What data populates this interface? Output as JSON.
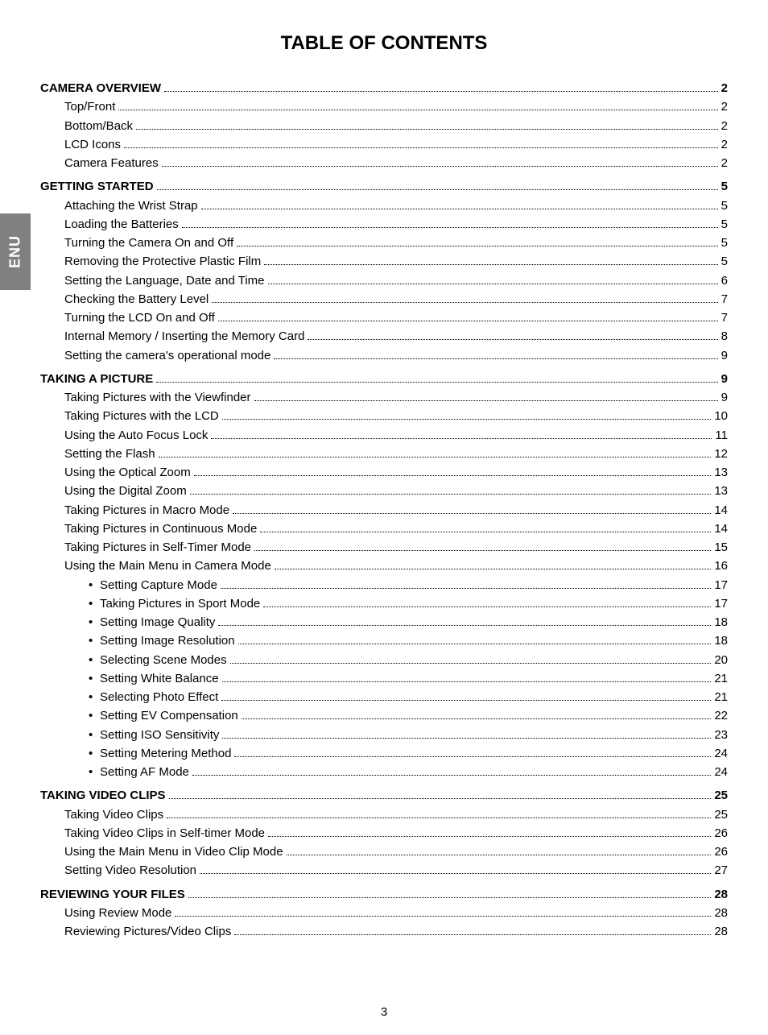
{
  "title": "TABLE OF CONTENTS",
  "side_tab": "ENU",
  "page_number": "3",
  "colors": {
    "background": "#ffffff",
    "text": "#000000",
    "tab_bg": "#808080",
    "tab_text": "#ffffff",
    "leader": "#000000"
  },
  "fonts": {
    "title_size_pt": 18,
    "body_size_pt": 11,
    "family": "Arial"
  },
  "toc": [
    {
      "label": "CAMERA OVERVIEW",
      "page": "2",
      "indent": 0,
      "bold": true,
      "bullet": false
    },
    {
      "label": "Top/Front",
      "page": "2",
      "indent": 1,
      "bold": false,
      "bullet": false
    },
    {
      "label": "Bottom/Back",
      "page": "2",
      "indent": 1,
      "bold": false,
      "bullet": false
    },
    {
      "label": "LCD Icons",
      "page": "2",
      "indent": 1,
      "bold": false,
      "bullet": false
    },
    {
      "label": "Camera Features",
      "page": "2",
      "indent": 1,
      "bold": false,
      "bullet": false
    },
    {
      "label": "GETTING STARTED",
      "page": "5",
      "indent": 0,
      "bold": true,
      "bullet": false
    },
    {
      "label": "Attaching the Wrist Strap",
      "page": "5",
      "indent": 1,
      "bold": false,
      "bullet": false
    },
    {
      "label": "Loading the Batteries",
      "page": "5",
      "indent": 1,
      "bold": false,
      "bullet": false
    },
    {
      "label": "Turning the Camera On and Off",
      "page": "5",
      "indent": 1,
      "bold": false,
      "bullet": false
    },
    {
      "label": "Removing the Protective Plastic Film",
      "page": "5",
      "indent": 1,
      "bold": false,
      "bullet": false
    },
    {
      "label": "Setting the Language, Date and Time",
      "page": "6",
      "indent": 1,
      "bold": false,
      "bullet": false
    },
    {
      "label": "Checking the Battery Level",
      "page": "7",
      "indent": 1,
      "bold": false,
      "bullet": false
    },
    {
      "label": "Turning the LCD On and Off",
      "page": "7",
      "indent": 1,
      "bold": false,
      "bullet": false
    },
    {
      "label": "Internal Memory / Inserting the Memory Card",
      "page": "8",
      "indent": 1,
      "bold": false,
      "bullet": false
    },
    {
      "label": "Setting the camera's operational mode",
      "page": "9",
      "indent": 1,
      "bold": false,
      "bullet": false
    },
    {
      "label": "TAKING A PICTURE",
      "page": "9",
      "indent": 0,
      "bold": true,
      "bullet": false
    },
    {
      "label": "Taking Pictures with the Viewfinder",
      "page": "9",
      "indent": 1,
      "bold": false,
      "bullet": false
    },
    {
      "label": "Taking Pictures with the LCD",
      "page": "10",
      "indent": 1,
      "bold": false,
      "bullet": false
    },
    {
      "label": "Using the Auto Focus Lock",
      "page": "11",
      "indent": 1,
      "bold": false,
      "bullet": false
    },
    {
      "label": "Setting the Flash",
      "page": "12",
      "indent": 1,
      "bold": false,
      "bullet": false
    },
    {
      "label": "Using the Optical Zoom",
      "page": "13",
      "indent": 1,
      "bold": false,
      "bullet": false
    },
    {
      "label": "Using the Digital Zoom",
      "page": "13",
      "indent": 1,
      "bold": false,
      "bullet": false
    },
    {
      "label": "Taking Pictures in Macro Mode",
      "page": "14",
      "indent": 1,
      "bold": false,
      "bullet": false
    },
    {
      "label": "Taking Pictures in Continuous Mode",
      "page": "14",
      "indent": 1,
      "bold": false,
      "bullet": false
    },
    {
      "label": "Taking Pictures in Self-Timer Mode",
      "page": "15",
      "indent": 1,
      "bold": false,
      "bullet": false
    },
    {
      "label": "Using the Main Menu in Camera Mode",
      "page": "16",
      "indent": 1,
      "bold": false,
      "bullet": false
    },
    {
      "label": "Setting Capture Mode",
      "page": "17",
      "indent": 2,
      "bold": false,
      "bullet": true
    },
    {
      "label": "Taking Pictures in Sport Mode",
      "page": "17",
      "indent": 2,
      "bold": false,
      "bullet": true
    },
    {
      "label": "Setting Image Quality",
      "page": "18",
      "indent": 2,
      "bold": false,
      "bullet": true
    },
    {
      "label": "Setting Image Resolution",
      "page": "18",
      "indent": 2,
      "bold": false,
      "bullet": true
    },
    {
      "label": "Selecting Scene Modes",
      "page": "20",
      "indent": 2,
      "bold": false,
      "bullet": true
    },
    {
      "label": "Setting White Balance",
      "page": "21",
      "indent": 2,
      "bold": false,
      "bullet": true
    },
    {
      "label": "Selecting Photo Effect",
      "page": "21",
      "indent": 2,
      "bold": false,
      "bullet": true
    },
    {
      "label": "Setting EV Compensation",
      "page": "22",
      "indent": 2,
      "bold": false,
      "bullet": true
    },
    {
      "label": "Setting ISO Sensitivity",
      "page": "23",
      "indent": 2,
      "bold": false,
      "bullet": true
    },
    {
      "label": "Setting Metering Method",
      "page": "24",
      "indent": 2,
      "bold": false,
      "bullet": true
    },
    {
      "label": "Setting AF Mode",
      "page": "24",
      "indent": 2,
      "bold": false,
      "bullet": true
    },
    {
      "label": "TAKING VIDEO CLIPS",
      "page": "25",
      "indent": 0,
      "bold": true,
      "bullet": false
    },
    {
      "label": "Taking Video Clips",
      "page": "25",
      "indent": 1,
      "bold": false,
      "bullet": false
    },
    {
      "label": "Taking Video Clips in Self-timer Mode",
      "page": "26",
      "indent": 1,
      "bold": false,
      "bullet": false
    },
    {
      "label": "Using the Main Menu in Video Clip Mode",
      "page": "26",
      "indent": 1,
      "bold": false,
      "bullet": false
    },
    {
      "label": "Setting Video Resolution",
      "page": "27",
      "indent": 1,
      "bold": false,
      "bullet": false
    },
    {
      "label": "REVIEWING YOUR FILES",
      "page": "28",
      "indent": 0,
      "bold": true,
      "bullet": false
    },
    {
      "label": "Using Review Mode",
      "page": "28",
      "indent": 1,
      "bold": false,
      "bullet": false
    },
    {
      "label": "Reviewing Pictures/Video Clips",
      "page": "28",
      "indent": 1,
      "bold": false,
      "bullet": false
    }
  ]
}
